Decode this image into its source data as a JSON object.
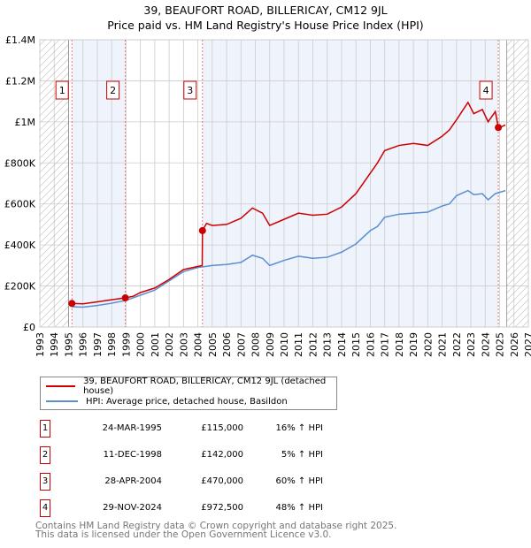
{
  "title": "39, BEAUFORT ROAD, BILLERICAY, CM12 9JL",
  "subtitle": "Price paid vs. HM Land Registry's House Price Index (HPI)",
  "chart_data": {
    "type": "line",
    "ylim": [
      0,
      1400000
    ],
    "xlim": [
      1993,
      2027
    ],
    "yticks": [
      {
        "v": 0,
        "label": "£0"
      },
      {
        "v": 200000,
        "label": "£200K"
      },
      {
        "v": 400000,
        "label": "£400K"
      },
      {
        "v": 600000,
        "label": "£600K"
      },
      {
        "v": 800000,
        "label": "£800K"
      },
      {
        "v": 1000000,
        "label": "£1M"
      },
      {
        "v": 1200000,
        "label": "£1.2M"
      },
      {
        "v": 1400000,
        "label": "£1.4M"
      }
    ],
    "xticks": [
      1993,
      1994,
      1995,
      1996,
      1997,
      1998,
      1999,
      2000,
      2001,
      2002,
      2003,
      2004,
      2005,
      2006,
      2007,
      2008,
      2009,
      2010,
      2011,
      2012,
      2013,
      2014,
      2015,
      2016,
      2017,
      2018,
      2019,
      2020,
      2021,
      2022,
      2023,
      2024,
      2025,
      2026,
      2027
    ],
    "data_range": [
      1995.0,
      2025.5
    ],
    "series": [
      {
        "name": "39, BEAUFORT ROAD, BILLERICAY, CM12 9JL (detached house)",
        "color": "#cc0000",
        "x": [
          1995.2,
          1996,
          1997,
          1998,
          1998.95,
          1999.5,
          2000,
          2001,
          2002,
          2003,
          2004.3,
          2004.32,
          2004.6,
          2005,
          2006,
          2007,
          2007.8,
          2008.5,
          2009,
          2010,
          2011,
          2012,
          2013,
          2014,
          2015,
          2016,
          2016.5,
          2017,
          2018,
          2019,
          2020,
          2021,
          2021.5,
          2022,
          2022.8,
          2023.2,
          2023.8,
          2024.2,
          2024.7,
          2024.91,
          2025.1,
          2025.4
        ],
        "y": [
          115000,
          113000,
          123000,
          133000,
          142000,
          150000,
          168000,
          190000,
          232000,
          280000,
          300000,
          470000,
          505000,
          495000,
          500000,
          530000,
          580000,
          555000,
          495000,
          525000,
          555000,
          545000,
          550000,
          585000,
          650000,
          750000,
          800000,
          860000,
          885000,
          895000,
          885000,
          930000,
          960000,
          1010000,
          1095000,
          1040000,
          1060000,
          1000000,
          1050000,
          972500,
          975000,
          985000
        ]
      },
      {
        "name": "HPI: Average price, detached house, Basildon",
        "color": "#5b8fd0",
        "x": [
          1995.2,
          1996,
          1997,
          1998,
          1999,
          2000,
          2001,
          2002,
          2003,
          2004,
          2005,
          2006,
          2007,
          2007.8,
          2008.5,
          2009,
          2010,
          2011,
          2012,
          2013,
          2014,
          2015,
          2016,
          2016.5,
          2017,
          2018,
          2019,
          2020,
          2021,
          2021.5,
          2022,
          2022.8,
          2023.2,
          2023.8,
          2024.2,
          2024.7,
          2025.4
        ],
        "y": [
          99000,
          97000,
          105000,
          116000,
          130000,
          155000,
          180000,
          225000,
          270000,
          290000,
          300000,
          305000,
          315000,
          350000,
          335000,
          300000,
          325000,
          345000,
          335000,
          340000,
          365000,
          405000,
          470000,
          490000,
          535000,
          550000,
          555000,
          560000,
          590000,
          600000,
          640000,
          665000,
          645000,
          650000,
          620000,
          650000,
          665000
        ]
      }
    ],
    "sales": [
      {
        "label": "1",
        "date": "24-MAR-1995",
        "x": 1995.23,
        "price": 115000,
        "price_label": "£115,000",
        "hpi": "16% ↑ HPI"
      },
      {
        "label": "2",
        "date": "11-DEC-1998",
        "x": 1998.95,
        "price": 142000,
        "price_label": "£142,000",
        "hpi": "5% ↑ HPI"
      },
      {
        "label": "3",
        "date": "28-APR-2004",
        "x": 2004.32,
        "price": 470000,
        "price_label": "£470,000",
        "hpi": "60% ↑ HPI"
      },
      {
        "label": "4",
        "date": "29-NOV-2024",
        "x": 2024.91,
        "price": 972500,
        "price_label": "£972,500",
        "hpi": "48% ↑ HPI"
      }
    ]
  },
  "legend": {
    "property": "39, BEAUFORT ROAD, BILLERICAY, CM12 9JL (detached house)",
    "hpi": "HPI: Average price, detached house, Basildon"
  },
  "footer": {
    "line1": "Contains HM Land Registry data © Crown copyright and database right 2025.",
    "line2": "This data is licensed under the Open Government Licence v3.0."
  }
}
